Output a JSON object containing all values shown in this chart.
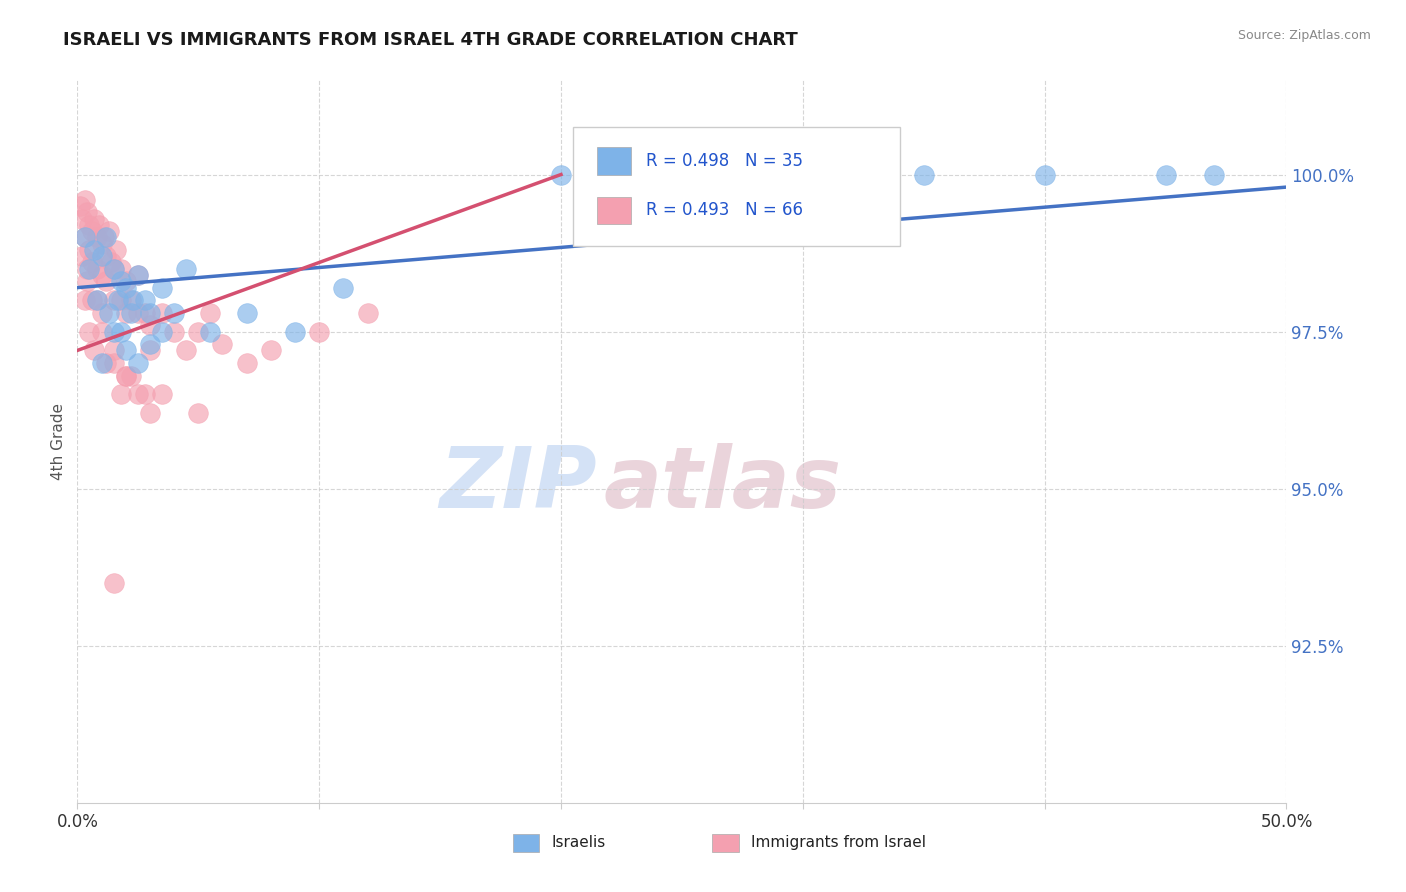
{
  "title": "ISRAELI VS IMMIGRANTS FROM ISRAEL 4TH GRADE CORRELATION CHART",
  "source": "Source: ZipAtlas.com",
  "ylabel": "4th Grade",
  "xlim": [
    0.0,
    50.0
  ],
  "ylim": [
    90.0,
    101.5
  ],
  "yticks": [
    92.5,
    95.0,
    97.5,
    100.0
  ],
  "ytick_labels": [
    "92.5%",
    "95.0%",
    "97.5%",
    "100.0%"
  ],
  "blue_label": "Israelis",
  "pink_label": "Immigrants from Israel",
  "blue_R": 0.498,
  "blue_N": 35,
  "pink_R": 0.493,
  "pink_N": 66,
  "blue_color": "#7EB3E8",
  "pink_color": "#F4A0B0",
  "trendline_blue": "#4472C4",
  "trendline_pink": "#D45070",
  "watermark_zip": "ZIP",
  "watermark_atlas": "atlas",
  "blue_scatter_x": [
    0.3,
    0.5,
    0.7,
    1.0,
    1.2,
    1.5,
    1.8,
    2.0,
    2.3,
    2.5,
    2.8,
    3.0,
    3.5,
    4.0,
    4.5,
    5.5,
    7.0,
    9.0,
    11.0,
    20.0,
    35.0,
    40.0,
    45.0,
    47.0,
    1.5,
    2.0,
    2.5,
    3.0,
    3.5,
    1.0,
    1.8,
    2.2,
    0.8,
    1.3,
    1.7
  ],
  "blue_scatter_y": [
    99.0,
    98.5,
    98.8,
    98.7,
    99.0,
    98.5,
    98.3,
    98.2,
    98.0,
    98.4,
    98.0,
    97.8,
    98.2,
    97.8,
    98.5,
    97.5,
    97.8,
    97.5,
    98.2,
    100.0,
    100.0,
    100.0,
    100.0,
    100.0,
    97.5,
    97.2,
    97.0,
    97.3,
    97.5,
    97.0,
    97.5,
    97.8,
    98.0,
    97.8,
    98.0
  ],
  "pink_scatter_x": [
    0.1,
    0.2,
    0.3,
    0.3,
    0.4,
    0.5,
    0.5,
    0.6,
    0.7,
    0.8,
    0.8,
    0.9,
    1.0,
    1.0,
    1.1,
    1.2,
    1.2,
    1.3,
    1.4,
    1.5,
    1.5,
    1.6,
    1.8,
    1.8,
    2.0,
    2.0,
    2.2,
    2.5,
    2.5,
    2.8,
    3.0,
    3.0,
    3.5,
    4.0,
    4.5,
    5.0,
    5.5,
    6.0,
    7.0,
    8.0,
    10.0,
    12.0,
    0.4,
    0.6,
    0.8,
    1.0,
    1.5,
    2.0,
    2.5,
    3.0,
    0.3,
    0.5,
    0.7,
    1.2,
    1.8,
    2.2,
    2.8,
    0.2,
    0.4,
    0.6,
    1.0,
    1.5,
    2.0,
    3.5,
    5.0,
    1.5
  ],
  "pink_scatter_y": [
    99.5,
    99.3,
    99.6,
    99.0,
    99.4,
    99.2,
    98.8,
    99.1,
    99.3,
    99.0,
    98.5,
    99.2,
    98.9,
    98.4,
    99.0,
    98.7,
    98.3,
    99.1,
    98.6,
    98.5,
    98.0,
    98.8,
    98.5,
    98.0,
    98.3,
    97.8,
    98.0,
    97.8,
    98.4,
    97.8,
    97.6,
    97.2,
    97.8,
    97.5,
    97.2,
    97.5,
    97.8,
    97.3,
    97.0,
    97.2,
    97.5,
    97.8,
    98.3,
    98.6,
    98.0,
    97.5,
    97.0,
    96.8,
    96.5,
    96.2,
    98.0,
    97.5,
    97.2,
    97.0,
    96.5,
    96.8,
    96.5,
    98.7,
    98.5,
    98.0,
    97.8,
    97.2,
    96.8,
    96.5,
    96.2,
    93.5
  ]
}
